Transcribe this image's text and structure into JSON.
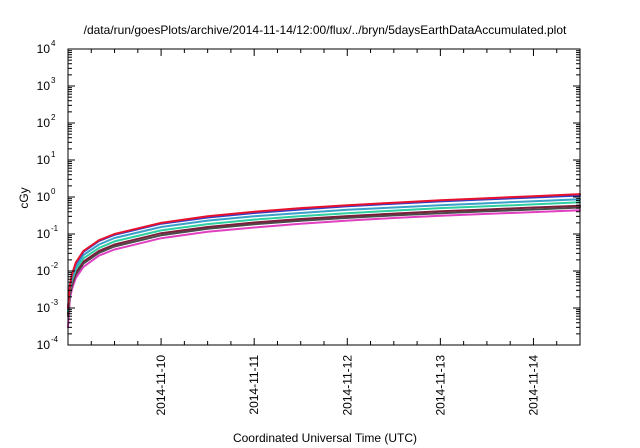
{
  "chart_data": {
    "type": "line",
    "title": "/data/run/goesPlots/archive/2014-11-14/12:00/flux/../bryn/5daysEarthDataAccumulated.plot",
    "xlabel": "Coordinated Universal Time (UTC)",
    "ylabel": "cGy",
    "y_scale": "log",
    "ylim": [
      0.0001,
      10000
    ],
    "xlim": [
      "2014-11-09T00:00",
      "2014-11-14T12:00"
    ],
    "grid": false,
    "legend": "none",
    "x_ticks": [
      "2014-11-10",
      "2014-11-11",
      "2014-11-12",
      "2014-11-13",
      "2014-11-14"
    ],
    "y_ticks": [
      {
        "base": "10",
        "exp": "-4",
        "value": 0.0001
      },
      {
        "base": "10",
        "exp": "-3",
        "value": 0.001
      },
      {
        "base": "10",
        "exp": "-2",
        "value": 0.01
      },
      {
        "base": "10",
        "exp": "-1",
        "value": 0.1
      },
      {
        "base": "10",
        "exp": "0",
        "value": 1
      },
      {
        "base": "10",
        "exp": "1",
        "value": 10
      },
      {
        "base": "10",
        "exp": "2",
        "value": 100
      },
      {
        "base": "10",
        "exp": "3",
        "value": 1000
      },
      {
        "base": "10",
        "exp": "4",
        "value": 10000
      }
    ],
    "x": [
      "2014-11-09T00:00",
      "2014-11-09T00:30",
      "2014-11-09T01:00",
      "2014-11-09T02:00",
      "2014-11-09T04:00",
      "2014-11-09T08:00",
      "2014-11-09T12:00",
      "2014-11-10T00:00",
      "2014-11-10T12:00",
      "2014-11-11T00:00",
      "2014-11-11T12:00",
      "2014-11-12T00:00",
      "2014-11-12T12:00",
      "2014-11-13T00:00",
      "2014-11-13T12:00",
      "2014-11-14T00:00",
      "2014-11-14T12:00"
    ],
    "series": [
      {
        "color": "#e8112d",
        "values": [
          0.001,
          0.004,
          0.008,
          0.017,
          0.035,
          0.068,
          0.1,
          0.2,
          0.3,
          0.4,
          0.5,
          0.6,
          0.7,
          0.82,
          0.93,
          1.05,
          1.2
        ]
      },
      {
        "color": "#2f3fc8",
        "values": [
          0.001,
          0.004,
          0.008,
          0.016,
          0.033,
          0.065,
          0.095,
          0.19,
          0.28,
          0.37,
          0.46,
          0.56,
          0.66,
          0.76,
          0.86,
          0.97,
          1.1
        ]
      },
      {
        "color": "#3aa0c8",
        "values": [
          0.0009,
          0.0035,
          0.0065,
          0.013,
          0.027,
          0.052,
          0.078,
          0.155,
          0.23,
          0.3,
          0.37,
          0.45,
          0.52,
          0.6,
          0.68,
          0.77,
          0.87
        ]
      },
      {
        "color": "#2ecfa0",
        "values": [
          0.0008,
          0.003,
          0.0055,
          0.011,
          0.022,
          0.042,
          0.063,
          0.125,
          0.185,
          0.245,
          0.305,
          0.365,
          0.43,
          0.5,
          0.56,
          0.63,
          0.72
        ]
      },
      {
        "color": "#7a1f3a",
        "values": [
          0.0007,
          0.0025,
          0.0045,
          0.009,
          0.018,
          0.035,
          0.052,
          0.105,
          0.155,
          0.205,
          0.255,
          0.305,
          0.355,
          0.41,
          0.46,
          0.52,
          0.58
        ]
      },
      {
        "color": "#4a4a4a",
        "values": [
          0.0006,
          0.0022,
          0.004,
          0.008,
          0.016,
          0.031,
          0.046,
          0.092,
          0.138,
          0.183,
          0.228,
          0.273,
          0.318,
          0.365,
          0.41,
          0.46,
          0.52
        ]
      },
      {
        "color": "#e040c0",
        "values": [
          0.0003,
          0.0018,
          0.0032,
          0.0065,
          0.013,
          0.026,
          0.038,
          0.077,
          0.115,
          0.15,
          0.19,
          0.23,
          0.27,
          0.31,
          0.35,
          0.39,
          0.44
        ]
      }
    ]
  }
}
